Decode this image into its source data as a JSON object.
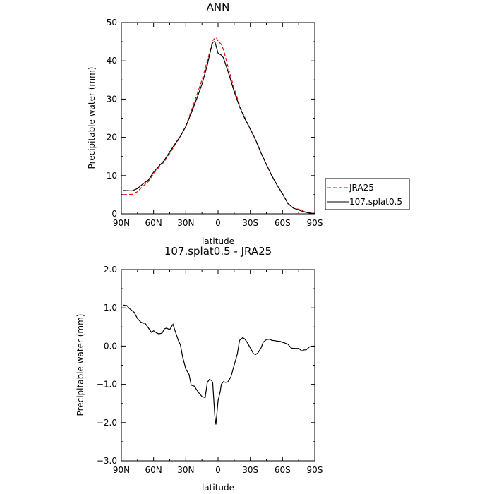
{
  "chart_data": [
    {
      "type": "line",
      "title": "ANN",
      "xlabel": "latitude",
      "ylabel": "Precipitable water (mm)",
      "xlim": [
        90,
        -90
      ],
      "ylim": [
        0,
        50
      ],
      "xticks": [
        90,
        60,
        30,
        0,
        -30,
        -60,
        -90
      ],
      "xtick_labels": [
        "90N",
        "60N",
        "30N",
        "0",
        "30S",
        "60S",
        "90S"
      ],
      "yticks": [
        0,
        10,
        20,
        30,
        40,
        50
      ],
      "ytick_labels": [
        "0",
        "10",
        "20",
        "30",
        "40",
        "50"
      ],
      "legend": "right",
      "series": [
        {
          "name": "JRA25",
          "color": "#ff0000",
          "dash": "dashed",
          "x": [
            88,
            80,
            75,
            70,
            65,
            60,
            55,
            50,
            45,
            40,
            35,
            30,
            25,
            20,
            15,
            10,
            7,
            5,
            2,
            0,
            -3,
            -5,
            -10,
            -15,
            -20,
            -25,
            -30,
            -35,
            -40,
            -45,
            -50,
            -55,
            -60,
            -65,
            -70,
            -75,
            -80,
            -85,
            -90
          ],
          "values": [
            5.0,
            5.1,
            5.8,
            7.2,
            8.4,
            10.5,
            12.2,
            13.6,
            15.8,
            18.0,
            20.2,
            23.0,
            26.8,
            30.9,
            35.0,
            40.0,
            43.0,
            45.3,
            46.2,
            45.2,
            44.3,
            43.0,
            37.7,
            32.8,
            28.5,
            25.1,
            22.1,
            19.2,
            15.9,
            12.9,
            9.9,
            7.5,
            5.3,
            2.8,
            1.5,
            1.2,
            0.6,
            0.3,
            0.1
          ]
        },
        {
          "name": "107.splat0.5",
          "color": "#000000",
          "dash": "solid",
          "x": [
            88,
            80,
            75,
            70,
            65,
            60,
            55,
            50,
            45,
            40,
            35,
            30,
            25,
            20,
            15,
            10,
            7,
            5,
            3,
            0,
            -3,
            -5,
            -10,
            -15,
            -20,
            -25,
            -30,
            -35,
            -40,
            -45,
            -50,
            -55,
            -60,
            -65,
            -70,
            -75,
            -80,
            -85,
            -90
          ],
          "values": [
            6.1,
            6.0,
            6.6,
            7.8,
            8.8,
            10.9,
            12.5,
            14.0,
            16.2,
            18.3,
            20.3,
            22.8,
            26.3,
            30.0,
            33.9,
            38.9,
            42.7,
            44.8,
            45.1,
            42.0,
            41.5,
            40.8,
            36.6,
            32.0,
            28.0,
            24.8,
            22.2,
            19.3,
            15.9,
            12.9,
            10.0,
            7.5,
            5.2,
            2.7,
            1.5,
            1.0,
            0.5,
            0.2,
            0.1
          ]
        }
      ]
    },
    {
      "type": "line",
      "title": "107.splat0.5 - JRA25",
      "xlabel": "latitude",
      "ylabel": "Precipitable water (mm)",
      "xlim": [
        90,
        -90
      ],
      "ylim": [
        -3.0,
        2.0
      ],
      "xticks": [
        90,
        60,
        30,
        0,
        -30,
        -60,
        -90
      ],
      "xtick_labels": [
        "90N",
        "60N",
        "30N",
        "0",
        "30S",
        "60S",
        "90S"
      ],
      "yticks": [
        -3.0,
        -2.0,
        -1.0,
        0.0,
        1.0,
        2.0
      ],
      "ytick_labels": [
        "−3.0",
        "−2.0",
        "−1.0",
        "0.0",
        "1.0",
        "2.0"
      ],
      "series": [
        {
          "color": "#000000",
          "dash": "solid",
          "x": [
            88,
            85,
            82,
            78,
            75,
            72,
            70,
            68,
            65,
            62,
            60,
            57,
            55,
            52,
            50,
            48,
            45,
            42,
            40,
            37,
            35,
            33,
            30,
            27,
            25,
            22,
            20,
            18,
            15,
            12,
            10,
            8,
            6,
            5,
            3,
            2,
            0,
            -2,
            -3,
            -5,
            -7,
            -9,
            -12,
            -15,
            -18,
            -20,
            -23,
            -25,
            -27,
            -30,
            -33,
            -35,
            -37,
            -40,
            -42,
            -45,
            -48,
            -50,
            -53,
            -55,
            -58,
            -60,
            -63,
            -65,
            -68,
            -70,
            -73,
            -75,
            -78,
            -80,
            -82,
            -85,
            -88,
            -90
          ],
          "values": [
            1.07,
            1.06,
            0.97,
            0.88,
            0.72,
            0.63,
            0.6,
            0.6,
            0.48,
            0.36,
            0.4,
            0.34,
            0.32,
            0.34,
            0.45,
            0.47,
            0.43,
            0.57,
            0.4,
            0.15,
            0.03,
            -0.28,
            -0.6,
            -0.74,
            -1.02,
            -1.05,
            -1.14,
            -1.22,
            -1.32,
            -1.35,
            -0.95,
            -0.87,
            -0.9,
            -0.95,
            -1.83,
            -2.05,
            -1.43,
            -1.2,
            -1.0,
            -0.93,
            -0.95,
            -0.94,
            -0.8,
            -0.5,
            -0.2,
            0.15,
            0.22,
            0.18,
            0.1,
            -0.05,
            -0.2,
            -0.22,
            -0.18,
            -0.05,
            0.1,
            0.17,
            0.18,
            0.15,
            0.14,
            0.13,
            0.12,
            0.1,
            0.07,
            0.05,
            -0.05,
            -0.06,
            -0.06,
            -0.06,
            -0.13,
            -0.1,
            -0.1,
            -0.02,
            -0.01,
            -0.01
          ]
        }
      ]
    }
  ]
}
